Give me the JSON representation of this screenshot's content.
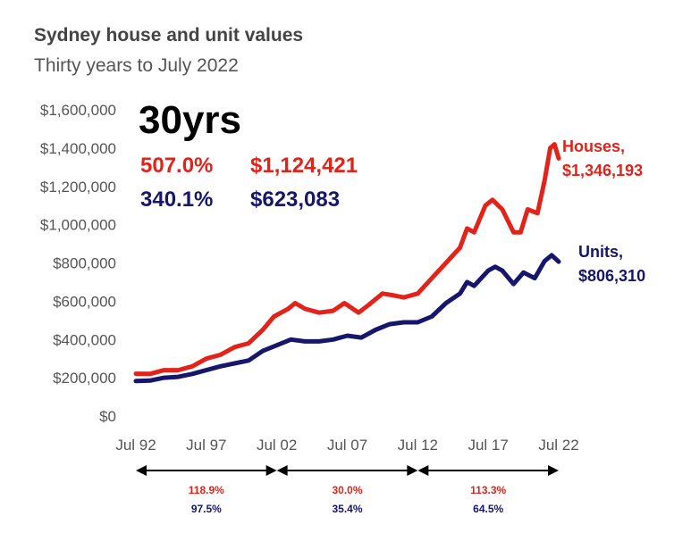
{
  "header": {
    "title": "Sydney house and unit values",
    "subtitle": "Thirty years to July 2022"
  },
  "summary": {
    "period": "30yrs",
    "houses_growth": "507.0%",
    "houses_value": "$1,124,421",
    "units_growth": "340.1%",
    "units_value": "$623,083"
  },
  "colors": {
    "houses": "#e2231a",
    "units": "#16166b",
    "axis": "#555555"
  },
  "chart_data": {
    "type": "line",
    "title": "Sydney house and unit values",
    "subtitle": "Thirty years to July 2022",
    "xlabel": "",
    "ylabel": "",
    "ylim": [
      0,
      1600000
    ],
    "yticks": [
      0,
      200000,
      400000,
      600000,
      800000,
      1000000,
      1200000,
      1400000,
      1600000
    ],
    "ytick_labels": [
      "$0",
      "$200,000",
      "$400,000",
      "$600,000",
      "$800,000",
      "$1,000,000",
      "$1,200,000",
      "$1,400,000",
      "$1,600,000"
    ],
    "xlim": [
      1992.5,
      2022.5
    ],
    "xticks": [
      1992.5,
      1997.5,
      2002.5,
      2007.5,
      2012.5,
      2017.5,
      2022.5
    ],
    "xtick_labels": [
      "Jul 92",
      "Jul 97",
      "Jul 02",
      "Jul 07",
      "Jul 12",
      "Jul 17",
      "Jul 22"
    ],
    "grid": false,
    "series": [
      {
        "name": "Houses",
        "end_label": [
          "Houses,",
          "$1,346,193"
        ],
        "x": [
          1992.5,
          1993.5,
          1994.5,
          1995.5,
          1996.5,
          1997.5,
          1998.5,
          1999.5,
          2000.5,
          2001.5,
          2002.3,
          2003.3,
          2003.8,
          2004.5,
          2005.5,
          2006.5,
          2007.3,
          2008.3,
          2009.0,
          2010.0,
          2010.8,
          2011.5,
          2012.5,
          2013.5,
          2014.5,
          2015.5,
          2016.0,
          2016.5,
          2017.3,
          2017.8,
          2018.5,
          2019.3,
          2019.8,
          2020.3,
          2021.0,
          2021.5,
          2021.9,
          2022.2,
          2022.5
        ],
        "values": [
          221000,
          220000,
          240000,
          240000,
          260000,
          300000,
          320000,
          360000,
          380000,
          450000,
          520000,
          560000,
          590000,
          560000,
          540000,
          550000,
          590000,
          540000,
          580000,
          640000,
          630000,
          620000,
          640000,
          720000,
          800000,
          880000,
          980000,
          960000,
          1100000,
          1130000,
          1080000,
          960000,
          960000,
          1080000,
          1060000,
          1230000,
          1400000,
          1420000,
          1346193
        ]
      },
      {
        "name": "Units",
        "end_label": [
          "Units,",
          "$806,310"
        ],
        "x": [
          1992.5,
          1993.5,
          1994.5,
          1995.5,
          1996.5,
          1997.5,
          1998.5,
          1999.5,
          2000.5,
          2001.5,
          2002.5,
          2003.5,
          2004.5,
          2005.5,
          2006.5,
          2007.5,
          2008.5,
          2009.5,
          2010.5,
          2011.5,
          2012.5,
          2013.5,
          2014.5,
          2015.5,
          2016.0,
          2016.5,
          2017.5,
          2018.0,
          2018.5,
          2019.3,
          2020.0,
          2020.8,
          2021.5,
          2022.0,
          2022.5
        ],
        "values": [
          183000,
          185000,
          200000,
          205000,
          220000,
          240000,
          260000,
          275000,
          290000,
          340000,
          370000,
          400000,
          390000,
          390000,
          400000,
          420000,
          410000,
          450000,
          480000,
          490000,
          490000,
          520000,
          590000,
          640000,
          700000,
          680000,
          760000,
          780000,
          760000,
          690000,
          750000,
          720000,
          810000,
          840000,
          806310
        ]
      }
    ],
    "periods": [
      {
        "from": 1992.5,
        "to": 2002.5,
        "houses": "118.9%",
        "units": "97.5%"
      },
      {
        "from": 2002.5,
        "to": 2012.5,
        "houses": "30.0%",
        "units": "35.4%"
      },
      {
        "from": 2012.5,
        "to": 2022.5,
        "houses": "113.3%",
        "units": "64.5%"
      }
    ]
  }
}
